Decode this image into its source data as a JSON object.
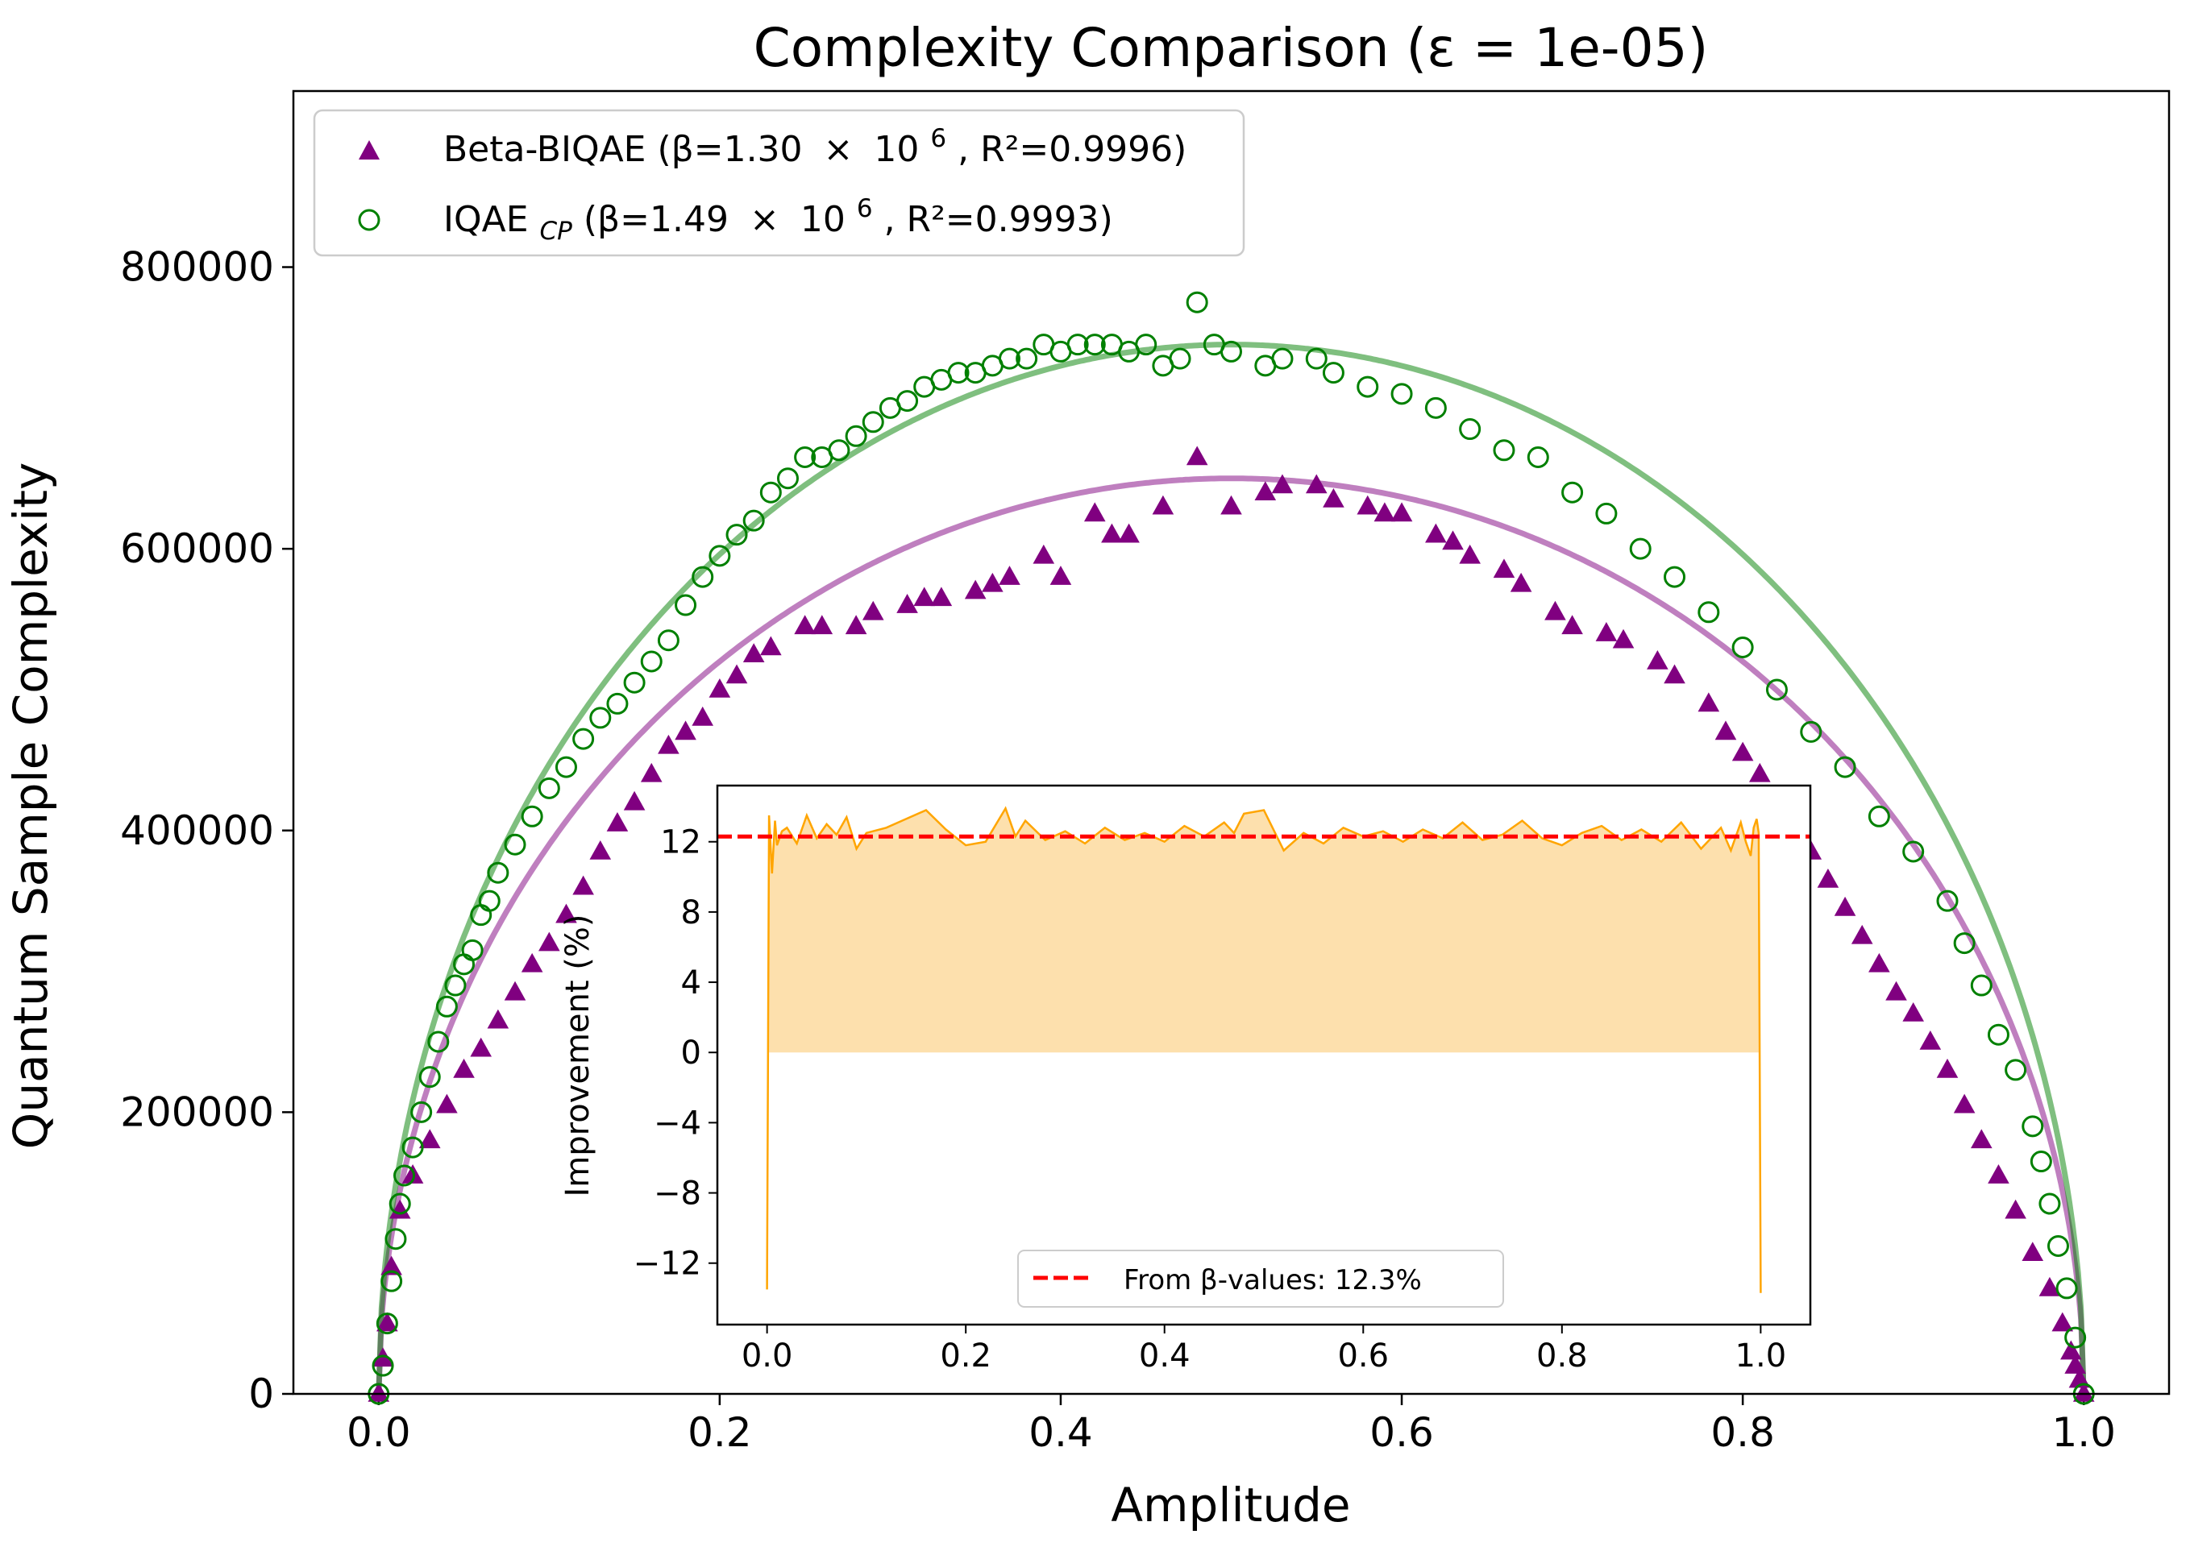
{
  "chart_data": [
    {
      "type": "scatter",
      "title": "Complexity Comparison (ε = 1e-05)",
      "xlabel": "Amplitude",
      "ylabel": "Quantum Sample Complexity",
      "xlim": [
        -0.05,
        1.05
      ],
      "ylim": [
        0,
        925000
      ],
      "xticks": [
        0.0,
        0.2,
        0.4,
        0.6,
        0.8,
        1.0
      ],
      "xtick_labels": [
        "0.0",
        "0.2",
        "0.4",
        "0.6",
        "0.8",
        "1.0"
      ],
      "yticks": [
        0,
        200000,
        400000,
        600000,
        800000
      ],
      "ytick_labels": [
        "0",
        "200000",
        "400000",
        "600000",
        "800000"
      ],
      "grid": false,
      "legend_position": "top-left",
      "series": [
        {
          "name": "Beta-BIQAE (β=1.30 × 10⁶, R²=0.9996)",
          "legend_main": "Beta-BIQAE (β=1.30",
          "legend_mult": "×",
          "legend_base": "10",
          "legend_exp": "6",
          "legend_tail": ", R²=0.9996)",
          "marker": "triangle",
          "color": "#800080",
          "fit_color": "#800080",
          "beta": 1300000,
          "r2": 0.9996,
          "x": [
            0.0,
            0.0025,
            0.005,
            0.0075,
            0.0125,
            0.02,
            0.03,
            0.04,
            0.05,
            0.06,
            0.07,
            0.08,
            0.09,
            0.1,
            0.11,
            0.12,
            0.13,
            0.14,
            0.15,
            0.16,
            0.17,
            0.18,
            0.19,
            0.2,
            0.21,
            0.22,
            0.23,
            0.25,
            0.26,
            0.28,
            0.29,
            0.31,
            0.32,
            0.33,
            0.35,
            0.36,
            0.37,
            0.39,
            0.4,
            0.42,
            0.43,
            0.44,
            0.46,
            0.48,
            0.5,
            0.52,
            0.53,
            0.55,
            0.56,
            0.58,
            0.59,
            0.6,
            0.62,
            0.63,
            0.64,
            0.66,
            0.67,
            0.69,
            0.7,
            0.72,
            0.73,
            0.75,
            0.76,
            0.78,
            0.79,
            0.8,
            0.81,
            0.82,
            0.83,
            0.84,
            0.85,
            0.86,
            0.87,
            0.88,
            0.89,
            0.9,
            0.91,
            0.92,
            0.93,
            0.94,
            0.95,
            0.96,
            0.97,
            0.98,
            0.9875,
            0.9925,
            0.995,
            0.9975,
            1.0
          ],
          "y": [
            0,
            25000,
            50000,
            90000,
            130000,
            155000,
            180000,
            205000,
            230000,
            245000,
            265000,
            285000,
            305000,
            320000,
            340000,
            360000,
            385000,
            405000,
            420000,
            440000,
            460000,
            470000,
            480000,
            500000,
            510000,
            525000,
            530000,
            545000,
            545000,
            545000,
            555000,
            560000,
            565000,
            565000,
            570000,
            575000,
            580000,
            595000,
            580000,
            625000,
            610000,
            610000,
            630000,
            665000,
            630000,
            640000,
            645000,
            645000,
            635000,
            630000,
            625000,
            625000,
            610000,
            605000,
            595000,
            585000,
            575000,
            555000,
            545000,
            540000,
            535000,
            520000,
            510000,
            490000,
            470000,
            455000,
            440000,
            420000,
            400000,
            385000,
            365000,
            345000,
            325000,
            305000,
            285000,
            270000,
            250000,
            230000,
            205000,
            180000,
            155000,
            130000,
            100000,
            75000,
            50000,
            30000,
            20000,
            10000,
            0
          ]
        },
        {
          "name": "IQAE_CP (β=1.49 × 10⁶, R²=0.9993)",
          "legend_main": "IQAE",
          "legend_sub": "CP",
          "legend_pre": " (β=1.49",
          "legend_mult": "×",
          "legend_base": "10",
          "legend_exp": "6",
          "legend_tail": ", R²=0.9993)",
          "marker": "open-circle",
          "color": "#008000",
          "fit_color": "#008000",
          "beta": 1490000,
          "r2": 0.9993,
          "x": [
            0.0,
            0.0025,
            0.005,
            0.0075,
            0.01,
            0.0125,
            0.015,
            0.02,
            0.025,
            0.03,
            0.035,
            0.04,
            0.045,
            0.05,
            0.055,
            0.06,
            0.065,
            0.07,
            0.08,
            0.09,
            0.1,
            0.11,
            0.12,
            0.13,
            0.14,
            0.15,
            0.16,
            0.17,
            0.18,
            0.19,
            0.2,
            0.21,
            0.22,
            0.23,
            0.24,
            0.25,
            0.26,
            0.27,
            0.28,
            0.29,
            0.3,
            0.31,
            0.32,
            0.33,
            0.34,
            0.35,
            0.36,
            0.37,
            0.38,
            0.39,
            0.4,
            0.41,
            0.42,
            0.43,
            0.44,
            0.45,
            0.46,
            0.47,
            0.48,
            0.49,
            0.5,
            0.52,
            0.53,
            0.55,
            0.56,
            0.58,
            0.6,
            0.62,
            0.64,
            0.66,
            0.68,
            0.7,
            0.72,
            0.74,
            0.76,
            0.78,
            0.8,
            0.82,
            0.84,
            0.86,
            0.88,
            0.9,
            0.92,
            0.93,
            0.94,
            0.95,
            0.96,
            0.97,
            0.975,
            0.98,
            0.985,
            0.99,
            0.995,
            1.0
          ],
          "y": [
            0,
            20000,
            50000,
            80000,
            110000,
            135000,
            155000,
            175000,
            200000,
            225000,
            250000,
            275000,
            290000,
            305000,
            315000,
            340000,
            350000,
            370000,
            390000,
            410000,
            430000,
            445000,
            465000,
            480000,
            490000,
            505000,
            520000,
            535000,
            560000,
            580000,
            595000,
            610000,
            620000,
            640000,
            650000,
            665000,
            665000,
            670000,
            680000,
            690000,
            700000,
            705000,
            715000,
            720000,
            725000,
            725000,
            730000,
            735000,
            735000,
            745000,
            740000,
            745000,
            745000,
            745000,
            740000,
            745000,
            730000,
            735000,
            775000,
            745000,
            740000,
            730000,
            735000,
            735000,
            725000,
            715000,
            710000,
            700000,
            685000,
            670000,
            665000,
            640000,
            625000,
            600000,
            580000,
            555000,
            530000,
            500000,
            470000,
            445000,
            410000,
            385000,
            350000,
            320000,
            290000,
            255000,
            230000,
            190000,
            165000,
            135000,
            105000,
            75000,
            40000,
            0
          ]
        }
      ]
    },
    {
      "type": "area",
      "xlabel": "",
      "ylabel": "Improvement (%)",
      "xlim": [
        -0.05,
        1.05
      ],
      "ylim": [
        -15.5,
        15.2
      ],
      "xticks": [
        0.0,
        0.2,
        0.4,
        0.6,
        0.8,
        1.0
      ],
      "xtick_labels": [
        "0.0",
        "0.2",
        "0.4",
        "0.6",
        "0.8",
        "1.0"
      ],
      "yticks": [
        -12,
        -8,
        -4,
        0,
        4,
        8,
        12
      ],
      "ytick_labels": [
        "−12",
        "−8",
        "−4",
        "0",
        "4",
        "8",
        "12"
      ],
      "legend_position": "bottom-center",
      "reference_line": {
        "label": "From β-values: 12.3%",
        "value": 12.3,
        "color": "#ff0000",
        "style": "dashed"
      },
      "series": [
        {
          "color": "#ffa500",
          "fill_color": "#fde0ad",
          "x": [
            0.0,
            0.002,
            0.005,
            0.008,
            0.01,
            0.015,
            0.02,
            0.03,
            0.04,
            0.05,
            0.06,
            0.07,
            0.08,
            0.09,
            0.1,
            0.12,
            0.14,
            0.16,
            0.18,
            0.2,
            0.22,
            0.24,
            0.25,
            0.26,
            0.28,
            0.3,
            0.32,
            0.34,
            0.36,
            0.38,
            0.4,
            0.42,
            0.44,
            0.46,
            0.47,
            0.48,
            0.5,
            0.52,
            0.54,
            0.56,
            0.58,
            0.6,
            0.62,
            0.64,
            0.66,
            0.68,
            0.7,
            0.72,
            0.74,
            0.76,
            0.78,
            0.8,
            0.82,
            0.84,
            0.86,
            0.88,
            0.9,
            0.92,
            0.94,
            0.96,
            0.97,
            0.98,
            0.985,
            0.99,
            0.993,
            0.996,
            0.998,
            1.0
          ],
          "y": [
            -13.5,
            13.5,
            10.2,
            13.2,
            11.8,
            12.6,
            12.8,
            11.9,
            13.5,
            12.2,
            13.0,
            12.4,
            13.4,
            11.6,
            12.5,
            12.8,
            13.3,
            13.8,
            12.7,
            11.8,
            12.0,
            13.9,
            12.3,
            13.2,
            12.1,
            12.6,
            11.9,
            12.8,
            12.1,
            12.5,
            12.0,
            12.9,
            12.3,
            13.1,
            12.5,
            13.6,
            13.8,
            11.5,
            12.5,
            11.9,
            12.8,
            12.3,
            12.6,
            12.0,
            12.7,
            12.2,
            13.1,
            12.1,
            12.4,
            13.2,
            12.2,
            11.8,
            12.5,
            12.9,
            12.1,
            12.7,
            12.0,
            13.1,
            11.6,
            12.8,
            11.5,
            13.1,
            12.0,
            11.2,
            12.8,
            13.3,
            12.5,
            -13.7
          ]
        }
      ]
    }
  ]
}
